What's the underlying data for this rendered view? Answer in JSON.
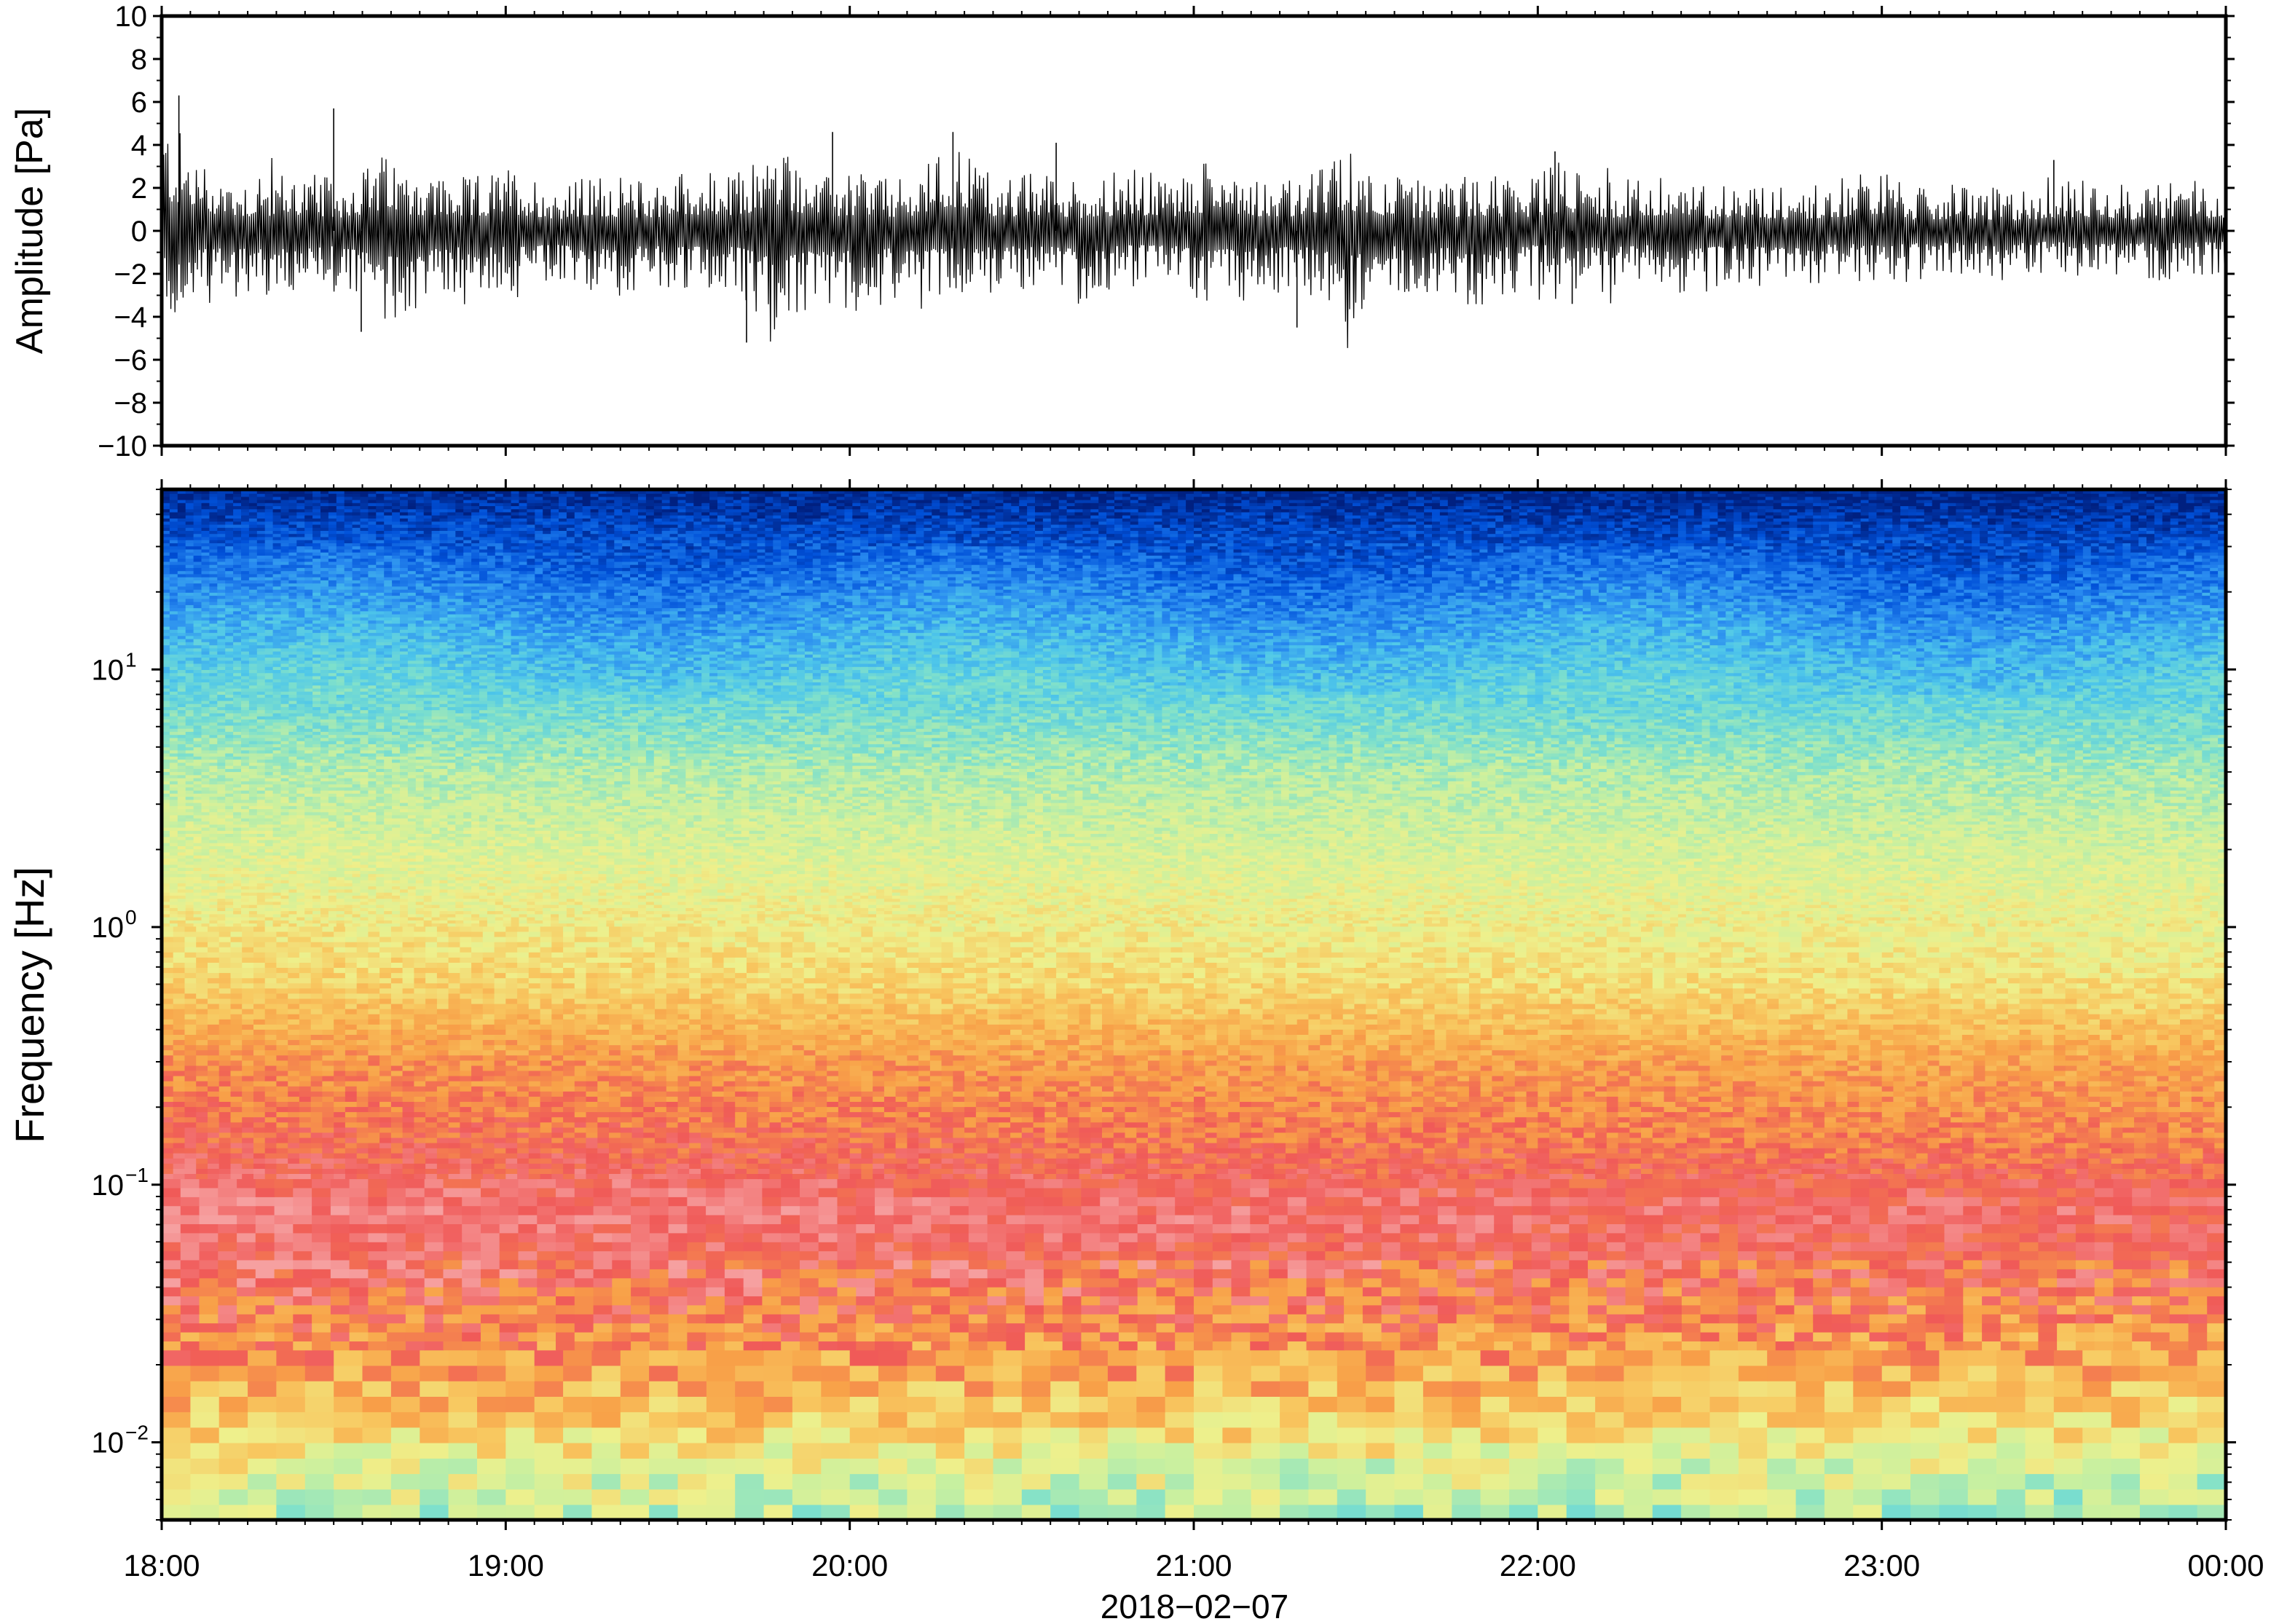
{
  "chart_data": [
    {
      "type": "line",
      "ylabel": "Amplitude [Pa]",
      "ylim": [
        -10,
        10
      ],
      "yticks": [
        10,
        8,
        6,
        4,
        2,
        0,
        -2,
        -4,
        -6,
        -8,
        -10
      ],
      "yticklabels": [
        "10",
        "8",
        "6",
        "4",
        "2",
        "0",
        "−2",
        "−4",
        "−6",
        "−8",
        "−10"
      ],
      "xlim_hours": [
        18,
        24
      ],
      "series": [
        {
          "color": "#000000",
          "envelope_max": [
            5.8,
            3.2,
            2.6,
            3.0,
            2.4,
            3.6,
            2.8,
            2.5,
            3.1,
            2.2,
            2.7,
            2.4,
            3.0,
            2.6,
            4.4,
            2.5,
            2.9,
            2.3,
            4.5,
            2.6,
            2.8,
            2.4,
            3.0,
            2.5,
            3.6,
            2.7,
            2.4,
            3.9,
            2.6,
            2.3,
            2.8,
            2.5,
            3.5,
            2.4,
            2.6,
            2.2,
            2.5,
            2.1,
            2.4,
            3.1,
            2.0,
            2.3,
            1.9,
            2.2,
            2.6,
            2.0,
            2.7,
            2.2
          ],
          "envelope_min": [
            -4.6,
            -3.4,
            -3.1,
            -3.5,
            -2.8,
            -4.7,
            -3.3,
            -3.0,
            -2.9,
            -2.6,
            -3.2,
            -2.8,
            -3.0,
            -2.7,
            -5.2,
            -3.4,
            -3.8,
            -2.9,
            -3.1,
            -3.0,
            -2.7,
            -3.6,
            -2.6,
            -2.8,
            -3.5,
            -3.2,
            -2.9,
            -4.5,
            -2.8,
            -3.0,
            -3.7,
            -2.7,
            -2.6,
            -3.0,
            -2.5,
            -3.3,
            -2.4,
            -3.1,
            -2.2,
            -2.6,
            -2.3,
            -2.1,
            -2.4,
            -2.0,
            -2.5,
            -2.2,
            -2.3,
            -2.0
          ],
          "peaks": [
            {
              "t": 18.05,
              "v": 6.3
            },
            {
              "t": 18.5,
              "v": 5.7
            },
            {
              "t": 18.58,
              "v": -4.7
            },
            {
              "t": 19.7,
              "v": -5.2
            },
            {
              "t": 19.95,
              "v": 4.6
            },
            {
              "t": 20.3,
              "v": 4.6
            },
            {
              "t": 20.6,
              "v": 4.1
            },
            {
              "t": 21.3,
              "v": -4.5
            },
            {
              "t": 22.05,
              "v": 3.7
            },
            {
              "t": 22.1,
              "v": -3.4
            },
            {
              "t": 23.5,
              "v": 3.3
            }
          ]
        }
      ]
    },
    {
      "type": "heatmap",
      "ylabel": "Frequency [Hz]",
      "xlabel": "2018−02−07",
      "yscale": "log",
      "ylim_hz": [
        0.005,
        50
      ],
      "ytick_values": [
        0.01,
        0.1,
        1,
        10
      ],
      "ytick_base": "10",
      "ytick_exponents": [
        "−2",
        "−1",
        "0",
        "1"
      ],
      "xticks_hours": [
        18,
        19,
        20,
        21,
        22,
        23,
        24
      ],
      "xticklabels": [
        "18:00",
        "19:00",
        "20:00",
        "21:00",
        "22:00",
        "23:00",
        "00:00"
      ],
      "colormap": [
        "#002080",
        "#0050d8",
        "#2a8cf0",
        "#4ec6ea",
        "#7ee0cc",
        "#c8f0a0",
        "#eef08c",
        "#f8c860",
        "#f8a048",
        "#f05a58",
        "#f6a0a0"
      ],
      "colormap_description": "rainbow: low power blue, high power red/pink",
      "level_profile": [
        {
          "f": 50,
          "level": 0.02
        },
        {
          "f": 30,
          "level": 0.12
        },
        {
          "f": 15,
          "level": 0.25
        },
        {
          "f": 8,
          "level": 0.36
        },
        {
          "f": 4,
          "level": 0.48
        },
        {
          "f": 1.5,
          "level": 0.58
        },
        {
          "f": 0.6,
          "level": 0.68
        },
        {
          "f": 0.3,
          "level": 0.82
        },
        {
          "f": 0.15,
          "level": 0.88
        },
        {
          "f": 0.08,
          "level": 0.96
        },
        {
          "f": 0.04,
          "level": 0.9
        },
        {
          "f": 0.02,
          "level": 0.8
        },
        {
          "f": 0.012,
          "level": 0.7
        },
        {
          "f": 0.008,
          "level": 0.58
        },
        {
          "f": 0.005,
          "level": 0.5
        }
      ]
    }
  ]
}
